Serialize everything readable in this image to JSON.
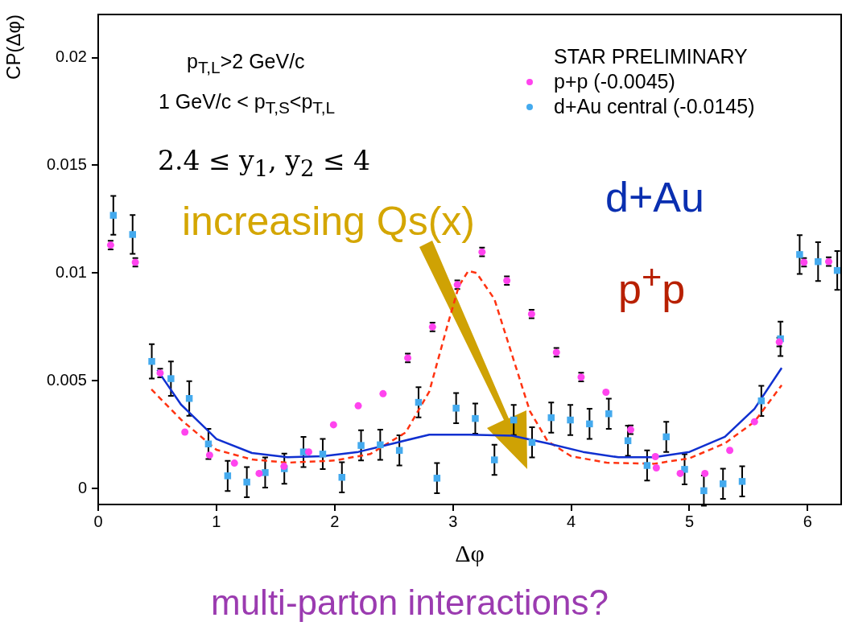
{
  "chart_data": {
    "type": "scatter",
    "xlabel": "Δφ",
    "ylabel": "CP(Δφ)",
    "legend_title": "STAR PRELIMINARY",
    "legend": "top right",
    "grid": false,
    "xlim": [
      0,
      6.2832
    ],
    "xticks": [
      0,
      1,
      2,
      3,
      4,
      5,
      6
    ],
    "ylim": [
      -0.00074,
      0.022
    ],
    "yticks": [
      0,
      0.005,
      0.01,
      0.015,
      0.02
    ],
    "annotations": [
      "p$_{T,L}$>2 GeV/c",
      "1 GeV/c < p$_{T,S}$<p$_{T,L}$",
      "2.4 ≤ y$_{1}$, y$_{2}$ ≤ 4",
      "increasing Qs(x)",
      "d+Au",
      "p$^{+}$p",
      "multi-parton interactions?"
    ],
    "series": [
      {
        "name": "p+p (-0.0045)",
        "marker": "circle",
        "color": "#ff44ee",
        "x": [
          0.105,
          0.314,
          0.524,
          0.733,
          0.942,
          1.152,
          1.361,
          1.571,
          1.78,
          1.99,
          2.199,
          2.409,
          2.618,
          2.827,
          3.037,
          3.246,
          3.456,
          3.665,
          3.875,
          4.084,
          4.294,
          4.503,
          4.712,
          4.72,
          4.922,
          5.131,
          5.341,
          5.55,
          5.76,
          5.969,
          6.178
        ],
        "values": [
          0.0113,
          0.0105,
          0.00536,
          0.00262,
          0.00155,
          0.00118,
          0.0007,
          0.00103,
          0.0017,
          0.00296,
          0.00384,
          0.0044,
          0.00606,
          0.0075,
          0.00946,
          0.01098,
          0.00965,
          0.0081,
          0.00632,
          0.00517,
          0.00447,
          0.00273,
          0.00148,
          0.00096,
          0.0007,
          0.0007,
          0.00177,
          0.0031,
          0.0068,
          0.0105,
          0.01053
        ],
        "errors": [
          0.0002,
          0.0002,
          0.0002,
          null,
          null,
          null,
          null,
          null,
          null,
          null,
          null,
          null,
          0.0002,
          0.0002,
          0.0002,
          0.0002,
          0.0002,
          0.0002,
          0.0002,
          0.0002,
          null,
          0.0002,
          null,
          null,
          null,
          null,
          null,
          null,
          0.0002,
          0.0002,
          0.0002
        ]
      },
      {
        "name": "d+Au central (-0.0145)",
        "type": "scatter",
        "marker": "square",
        "color": "#44aaee",
        "x": [
          0.128,
          0.291,
          0.453,
          0.615,
          0.77,
          0.932,
          1.095,
          1.257,
          1.412,
          1.574,
          1.736,
          1.899,
          2.061,
          2.223,
          2.385,
          2.547,
          2.709,
          2.865,
          3.027,
          3.189,
          3.351,
          3.514,
          3.669,
          3.831,
          3.993,
          4.155,
          4.318,
          4.48,
          4.642,
          4.804,
          4.959,
          5.122,
          5.284,
          5.446,
          5.608,
          5.77,
          5.932,
          6.088,
          6.25
        ],
        "values": [
          0.01268,
          0.01179,
          0.0059,
          0.0051,
          0.00418,
          0.00207,
          0.00059,
          0.0003,
          0.00074,
          0.00092,
          0.0017,
          0.0016,
          0.00052,
          0.002,
          0.00203,
          0.00177,
          0.004,
          0.00048,
          0.00373,
          0.00325,
          0.00133,
          0.00318,
          0.00214,
          0.00329,
          0.00318,
          0.003,
          0.00347,
          0.00222,
          0.00107,
          0.0024,
          0.00089,
          -0.0001,
          0.00022,
          0.00033,
          0.00407,
          0.00695,
          0.01086,
          0.01053,
          0.01012
        ],
        "errors": [
          0.0009,
          0.0009,
          0.0008,
          0.0008,
          0.0008,
          0.0007,
          0.0007,
          0.0007,
          0.0007,
          0.0007,
          0.0007,
          0.0007,
          0.0007,
          0.0007,
          0.0007,
          0.0007,
          0.0007,
          0.0007,
          0.0007,
          0.0007,
          0.0007,
          0.0007,
          0.0007,
          0.0007,
          0.0007,
          0.0007,
          0.0007,
          0.0007,
          0.0007,
          0.0007,
          0.0007,
          0.0007,
          0.0007,
          0.0007,
          0.0007,
          0.0008,
          0.0009,
          0.0009,
          0.0009
        ]
      },
      {
        "type": "line",
        "marker": "none",
        "line_style": "solid",
        "color": "#1030d0",
        "x": [
          0.5,
          0.7,
          1.0,
          1.3,
          1.6,
          1.9,
          2.2,
          2.5,
          2.8,
          3.14,
          3.5,
          3.8,
          4.1,
          4.4,
          4.7,
          5.0,
          5.3,
          5.55,
          5.78
        ],
        "values": [
          0.0055,
          0.0039,
          0.0023,
          0.00165,
          0.00145,
          0.0015,
          0.0017,
          0.0021,
          0.0025,
          0.0025,
          0.00245,
          0.0021,
          0.0017,
          0.00145,
          0.00145,
          0.0017,
          0.0024,
          0.0037,
          0.0056
        ]
      },
      {
        "type": "line",
        "marker": "none",
        "line_style": "dashed",
        "color": "#ff3311",
        "x": [
          0.45,
          0.7,
          1.0,
          1.3,
          1.6,
          2.0,
          2.3,
          2.6,
          2.8,
          2.95,
          3.05,
          3.13,
          3.2,
          3.35,
          3.5,
          3.65,
          3.8,
          4.0,
          4.3,
          4.7,
          5.0,
          5.3,
          5.55,
          5.78
        ],
        "values": [
          0.0046,
          0.0032,
          0.0018,
          0.00135,
          0.0012,
          0.0013,
          0.0016,
          0.0026,
          0.0045,
          0.0075,
          0.0094,
          0.0101,
          0.01,
          0.0088,
          0.0062,
          0.0036,
          0.0022,
          0.0015,
          0.0012,
          0.00115,
          0.0014,
          0.0021,
          0.0031,
          0.0048
        ]
      }
    ]
  }
}
